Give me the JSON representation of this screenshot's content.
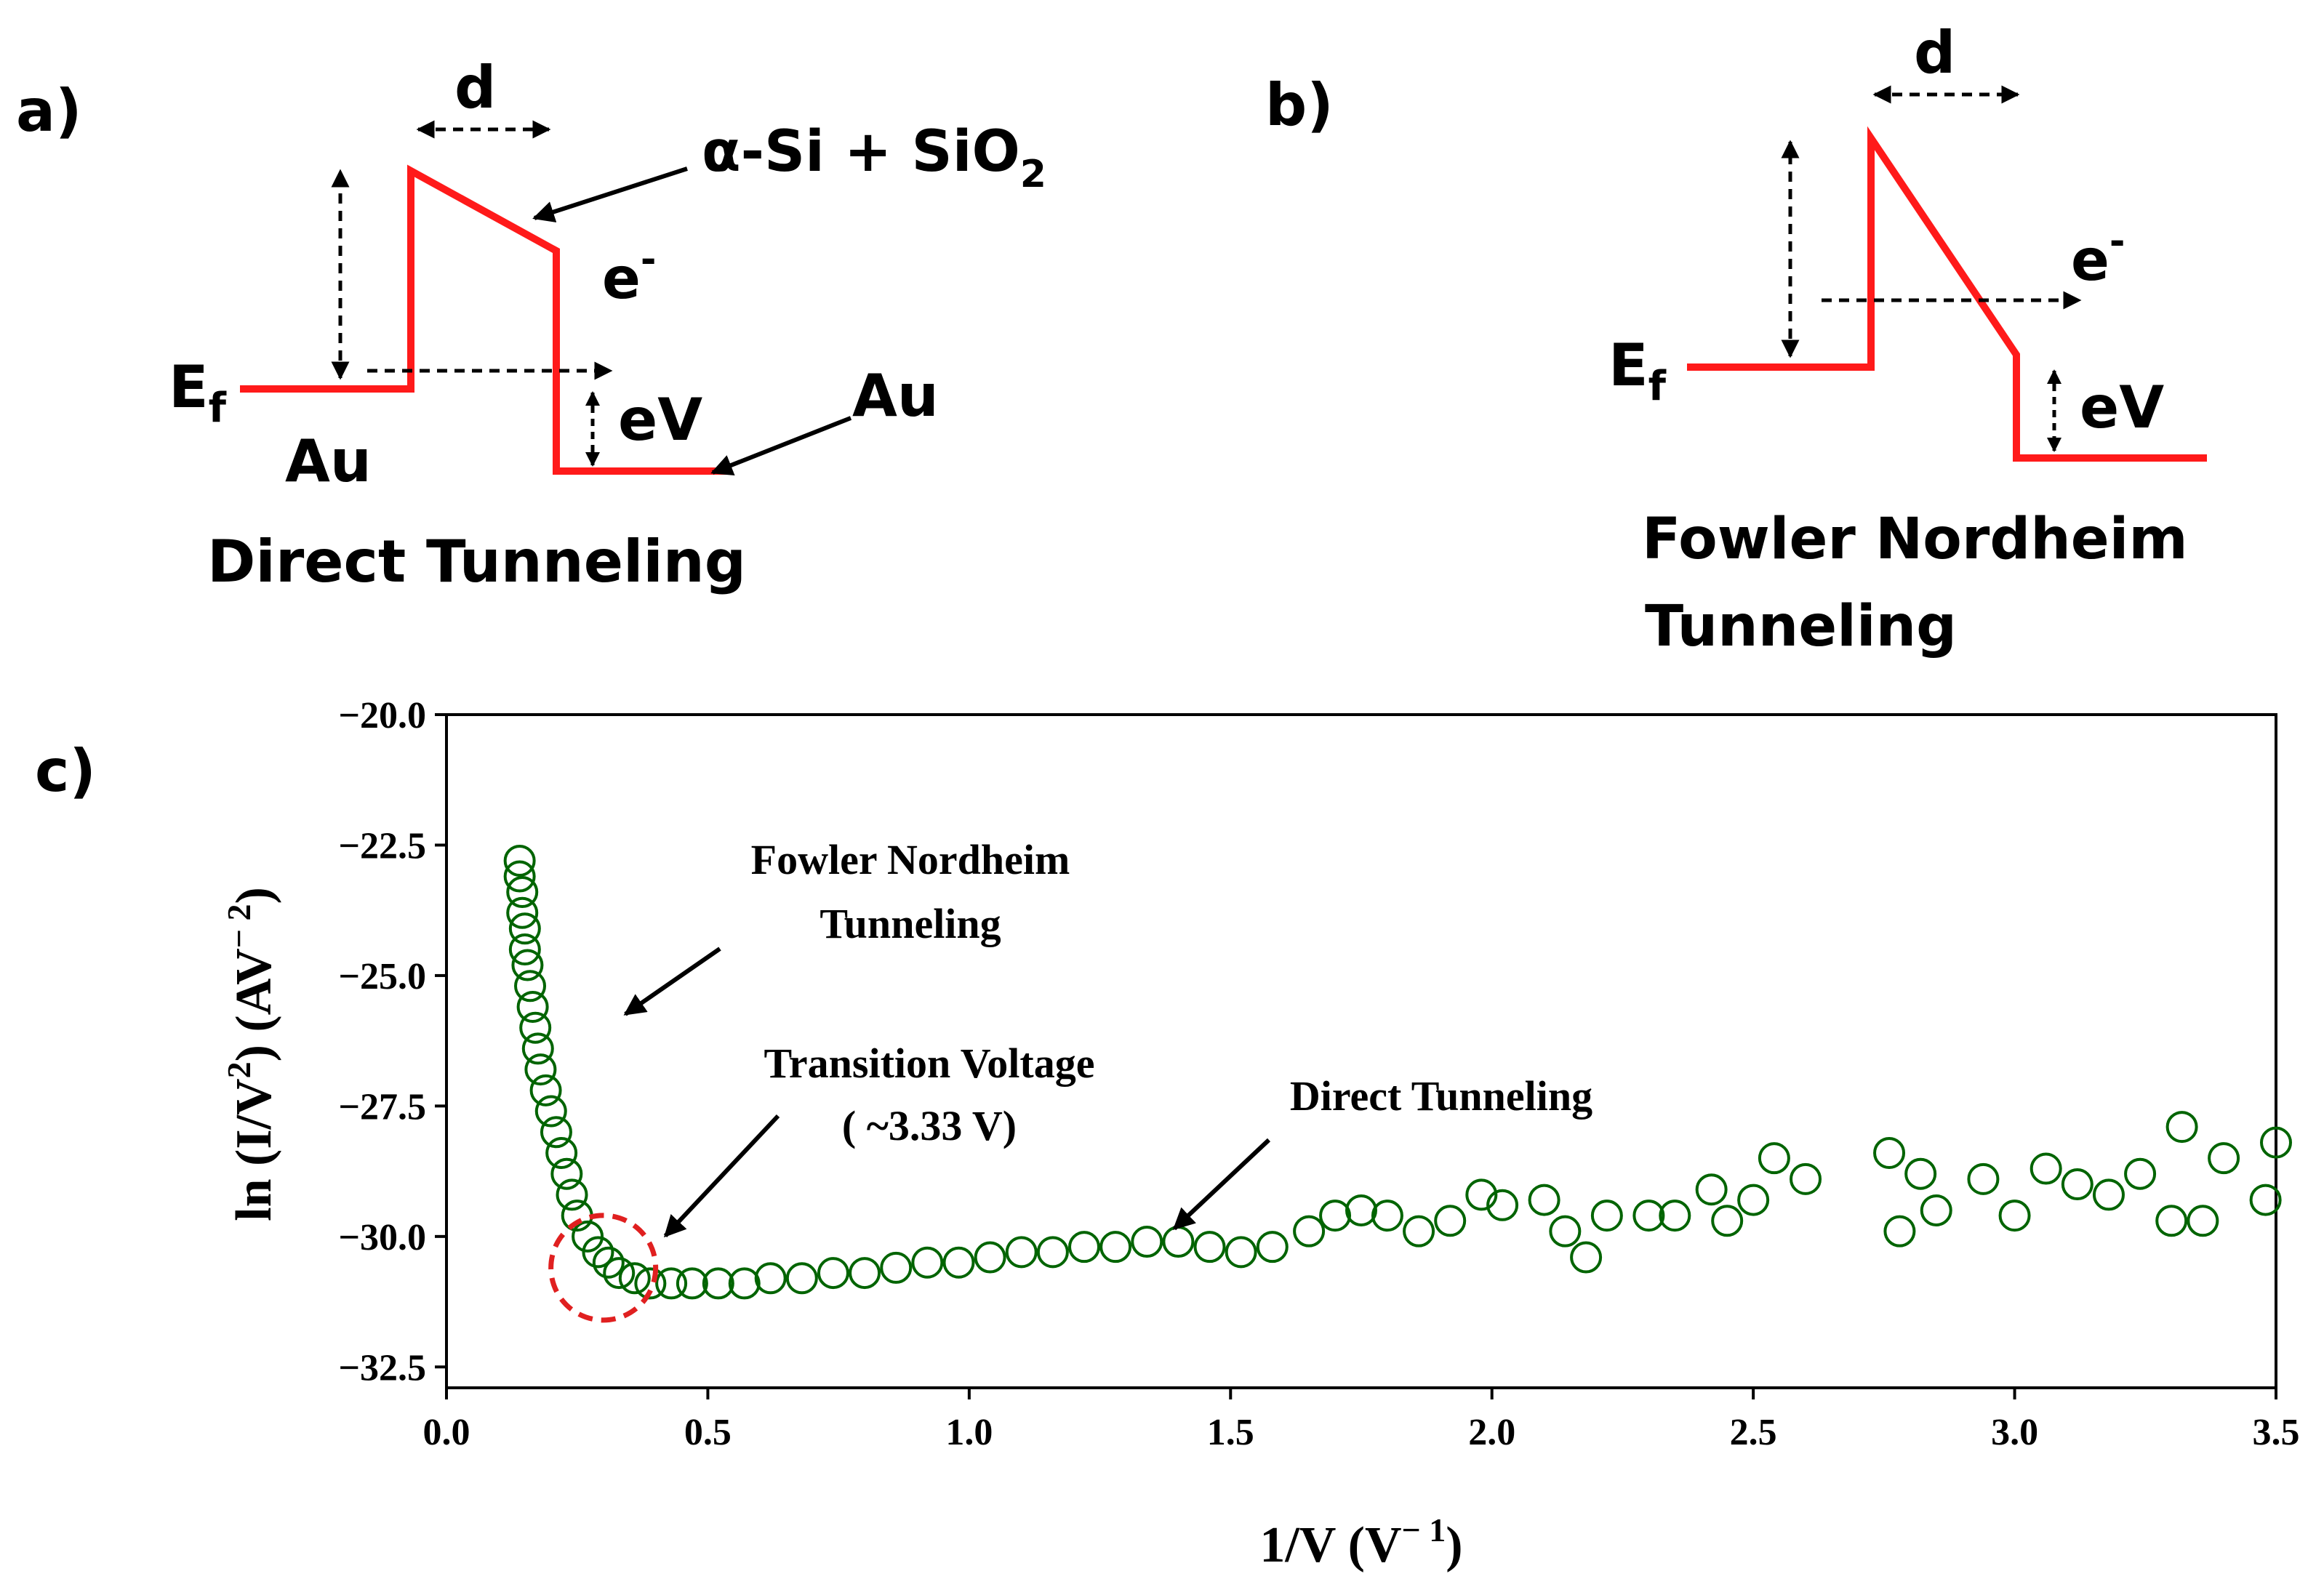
{
  "colors": {
    "band": "#ff1a1a",
    "ink": "#000000",
    "marker": "#006400",
    "highlight": "#e02020"
  },
  "panel_a": {
    "label": "a)",
    "d_label": "d",
    "material_prefix": "α-Si + SiO",
    "material_sub": "2",
    "electron": "e",
    "electron_sup": "-",
    "ef_main": "E",
    "ef_sub": "f",
    "ev_label": "eV",
    "au_left": "Au",
    "au_right": "Au",
    "caption": "Direct Tunneling"
  },
  "panel_b": {
    "label": "b)",
    "d_label": "d",
    "electron": "e",
    "electron_sup": "-",
    "ef_main": "E",
    "ef_sub": "f",
    "ev_label": "eV",
    "caption_line1": "Fowler Nordheim",
    "caption_line2": "Tunneling"
  },
  "panel_c": {
    "label": "c)",
    "fn_line1": "Fowler Nordheim",
    "fn_line2": "Tunneling",
    "tv_line1": "Transition Voltage",
    "tv_line2": "( ~3.33 V)",
    "dt_label": "Direct Tunneling",
    "ylabel_prefix": "ln (I/V",
    "ylabel_sup": "2",
    "ylabel_mid": ") (AV",
    "ylabel_sup2": "− 2",
    "ylabel_end": ")",
    "xlabel_prefix": "1/V (V",
    "xlabel_sup": "− 1",
    "xlabel_end": ")",
    "x_tick_labels": [
      "0.0",
      "0.5",
      "1.0",
      "1.5",
      "2.0",
      "2.5",
      "3.0",
      "3.5"
    ],
    "y_tick_labels": [
      "−20.0",
      "−22.5",
      "−25.0",
      "−27.5",
      "−30.0",
      "−32.5"
    ]
  },
  "chart_data": {
    "type": "scatter",
    "title": "",
    "xlabel": "1/V (V^-1)",
    "ylabel": "ln (I/V^2) (AV^-2)",
    "xlim": [
      0.0,
      3.5
    ],
    "ylim": [
      -32.9,
      -20.0
    ],
    "x_ticks": [
      0.0,
      0.5,
      1.0,
      1.5,
      2.0,
      2.5,
      3.0,
      3.5
    ],
    "y_ticks": [
      -20.0,
      -22.5,
      -25.0,
      -27.5,
      -30.0,
      -32.5
    ],
    "transition_point": {
      "x": 0.3,
      "y": -30.6
    },
    "series": [
      {
        "name": "ln(I/V^2) vs 1/V",
        "marker": "open-circle",
        "points": [
          [
            0.14,
            -22.8
          ],
          [
            0.14,
            -23.1
          ],
          [
            0.145,
            -23.4
          ],
          [
            0.145,
            -23.8
          ],
          [
            0.15,
            -24.1
          ],
          [
            0.15,
            -24.5
          ],
          [
            0.155,
            -24.8
          ],
          [
            0.16,
            -25.2
          ],
          [
            0.165,
            -25.6
          ],
          [
            0.17,
            -26.0
          ],
          [
            0.175,
            -26.4
          ],
          [
            0.18,
            -26.8
          ],
          [
            0.19,
            -27.2
          ],
          [
            0.2,
            -27.6
          ],
          [
            0.21,
            -28.0
          ],
          [
            0.22,
            -28.4
          ],
          [
            0.23,
            -28.8
          ],
          [
            0.24,
            -29.2
          ],
          [
            0.25,
            -29.6
          ],
          [
            0.27,
            -30.0
          ],
          [
            0.29,
            -30.3
          ],
          [
            0.31,
            -30.5
          ],
          [
            0.33,
            -30.7
          ],
          [
            0.36,
            -30.8
          ],
          [
            0.39,
            -30.9
          ],
          [
            0.43,
            -30.9
          ],
          [
            0.47,
            -30.9
          ],
          [
            0.52,
            -30.9
          ],
          [
            0.57,
            -30.9
          ],
          [
            0.62,
            -30.8
          ],
          [
            0.68,
            -30.8
          ],
          [
            0.74,
            -30.7
          ],
          [
            0.8,
            -30.7
          ],
          [
            0.86,
            -30.6
          ],
          [
            0.92,
            -30.5
          ],
          [
            0.98,
            -30.5
          ],
          [
            1.04,
            -30.4
          ],
          [
            1.1,
            -30.3
          ],
          [
            1.16,
            -30.3
          ],
          [
            1.22,
            -30.2
          ],
          [
            1.28,
            -30.2
          ],
          [
            1.34,
            -30.1
          ],
          [
            1.4,
            -30.1
          ],
          [
            1.46,
            -30.2
          ],
          [
            1.52,
            -30.3
          ],
          [
            1.58,
            -30.2
          ],
          [
            1.65,
            -29.9
          ],
          [
            1.7,
            -29.6
          ],
          [
            1.75,
            -29.5
          ],
          [
            1.8,
            -29.6
          ],
          [
            1.86,
            -29.9
          ],
          [
            1.92,
            -29.7
          ],
          [
            1.98,
            -29.2
          ],
          [
            2.02,
            -29.4
          ],
          [
            2.1,
            -29.3
          ],
          [
            2.14,
            -29.9
          ],
          [
            2.18,
            -30.4
          ],
          [
            2.22,
            -29.6
          ],
          [
            2.3,
            -29.6
          ],
          [
            2.35,
            -29.6
          ],
          [
            2.42,
            -29.1
          ],
          [
            2.45,
            -29.7
          ],
          [
            2.5,
            -29.3
          ],
          [
            2.54,
            -28.5
          ],
          [
            2.6,
            -28.9
          ],
          [
            2.76,
            -28.4
          ],
          [
            2.78,
            -29.9
          ],
          [
            2.82,
            -28.8
          ],
          [
            2.85,
            -29.5
          ],
          [
            2.94,
            -28.9
          ],
          [
            3.0,
            -29.6
          ],
          [
            3.06,
            -28.7
          ],
          [
            3.12,
            -29.0
          ],
          [
            3.18,
            -29.2
          ],
          [
            3.24,
            -28.8
          ],
          [
            3.3,
            -29.7
          ],
          [
            3.32,
            -27.9
          ],
          [
            3.36,
            -29.7
          ],
          [
            3.4,
            -28.5
          ],
          [
            3.48,
            -29.3
          ],
          [
            3.5,
            -28.2
          ]
        ]
      }
    ]
  }
}
